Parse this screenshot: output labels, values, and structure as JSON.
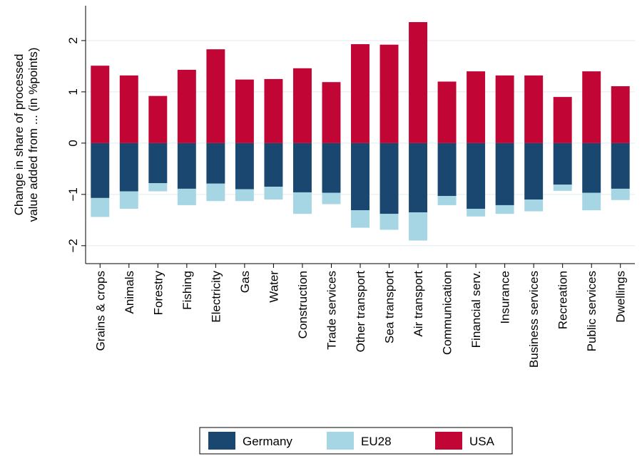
{
  "chart_data": {
    "type": "stacked_bar",
    "ylabel": [
      "Change in share of processed",
      "value added from ... (in %points)"
    ],
    "categories": [
      "Grains & crops",
      "Animals",
      "Forestry",
      "Fishing",
      "Electricity",
      "Gas",
      "Water",
      "Construction",
      "Trade services",
      "Other transport",
      "Sea transport",
      "Air transport",
      "Communication",
      "Financial serv.",
      "Insurance",
      "Business services",
      "Recreation",
      "Public services",
      "Dwellings"
    ],
    "series": [
      {
        "name": "Germany",
        "color": "#1a476f",
        "values": [
          -1.07,
          -0.94,
          -0.78,
          -0.89,
          -0.79,
          -0.9,
          -0.85,
          -0.96,
          -0.97,
          -1.31,
          -1.38,
          -1.35,
          -1.03,
          -1.28,
          -1.21,
          -1.1,
          -0.81,
          -0.97,
          -0.89
        ]
      },
      {
        "name": "EU28",
        "color": "#a6d6e4",
        "values": [
          -0.37,
          -0.34,
          -0.16,
          -0.32,
          -0.34,
          -0.23,
          -0.25,
          -0.42,
          -0.22,
          -0.34,
          -0.31,
          -0.55,
          -0.18,
          -0.15,
          -0.17,
          -0.23,
          -0.12,
          -0.34,
          -0.22
        ]
      },
      {
        "name": "USA",
        "color": "#c10534",
        "values": [
          1.51,
          1.32,
          0.92,
          1.43,
          1.83,
          1.24,
          1.25,
          1.46,
          1.19,
          1.93,
          1.92,
          2.36,
          1.2,
          1.4,
          1.32,
          1.32,
          0.9,
          1.4,
          1.11
        ]
      }
    ],
    "ylim": [
      -2.35,
      2.68
    ],
    "yticks": [
      {
        "value": -2,
        "label": "−2"
      },
      {
        "value": -1,
        "label": "−1"
      },
      0,
      1,
      2
    ],
    "grid": true,
    "legend": "bottom"
  }
}
